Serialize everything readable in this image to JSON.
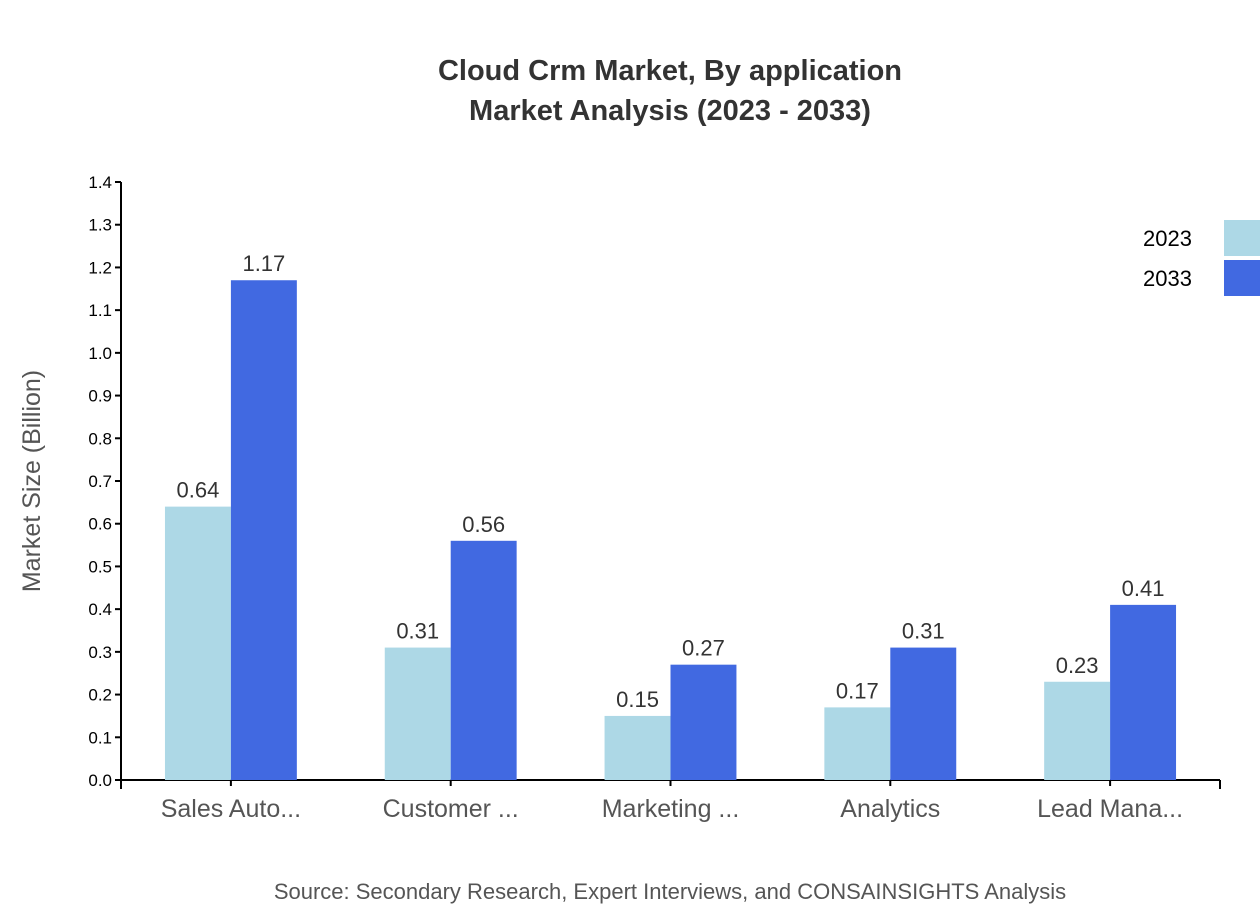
{
  "chart_data": {
    "type": "bar",
    "title": "Cloud Crm Market, By application",
    "subtitle": "Market Analysis (2023 - 2033)",
    "xlabel": "",
    "ylabel": "Market Size (Billion)",
    "ylim": [
      0,
      1.4
    ],
    "yticks": [
      "0.0",
      "0.1",
      "0.2",
      "0.3",
      "0.4",
      "0.5",
      "0.6",
      "0.7",
      "0.8",
      "0.9",
      "1.0",
      "1.1",
      "1.2",
      "1.3",
      "1.4"
    ],
    "categories": [
      "Sales Auto...",
      "Customer ...",
      "Marketing ...",
      "Analytics",
      "Lead Mana..."
    ],
    "series": [
      {
        "name": "2023",
        "color": "#ADD8E6",
        "values": [
          0.64,
          0.31,
          0.15,
          0.17,
          0.23
        ]
      },
      {
        "name": "2033",
        "color": "#4169E1",
        "values": [
          1.17,
          0.56,
          0.27,
          0.31,
          0.41
        ]
      }
    ],
    "grid": false,
    "legend_position": "top-right",
    "source": "Source: Secondary Research, Expert Interviews, and CONSAINSIGHTS Analysis"
  }
}
